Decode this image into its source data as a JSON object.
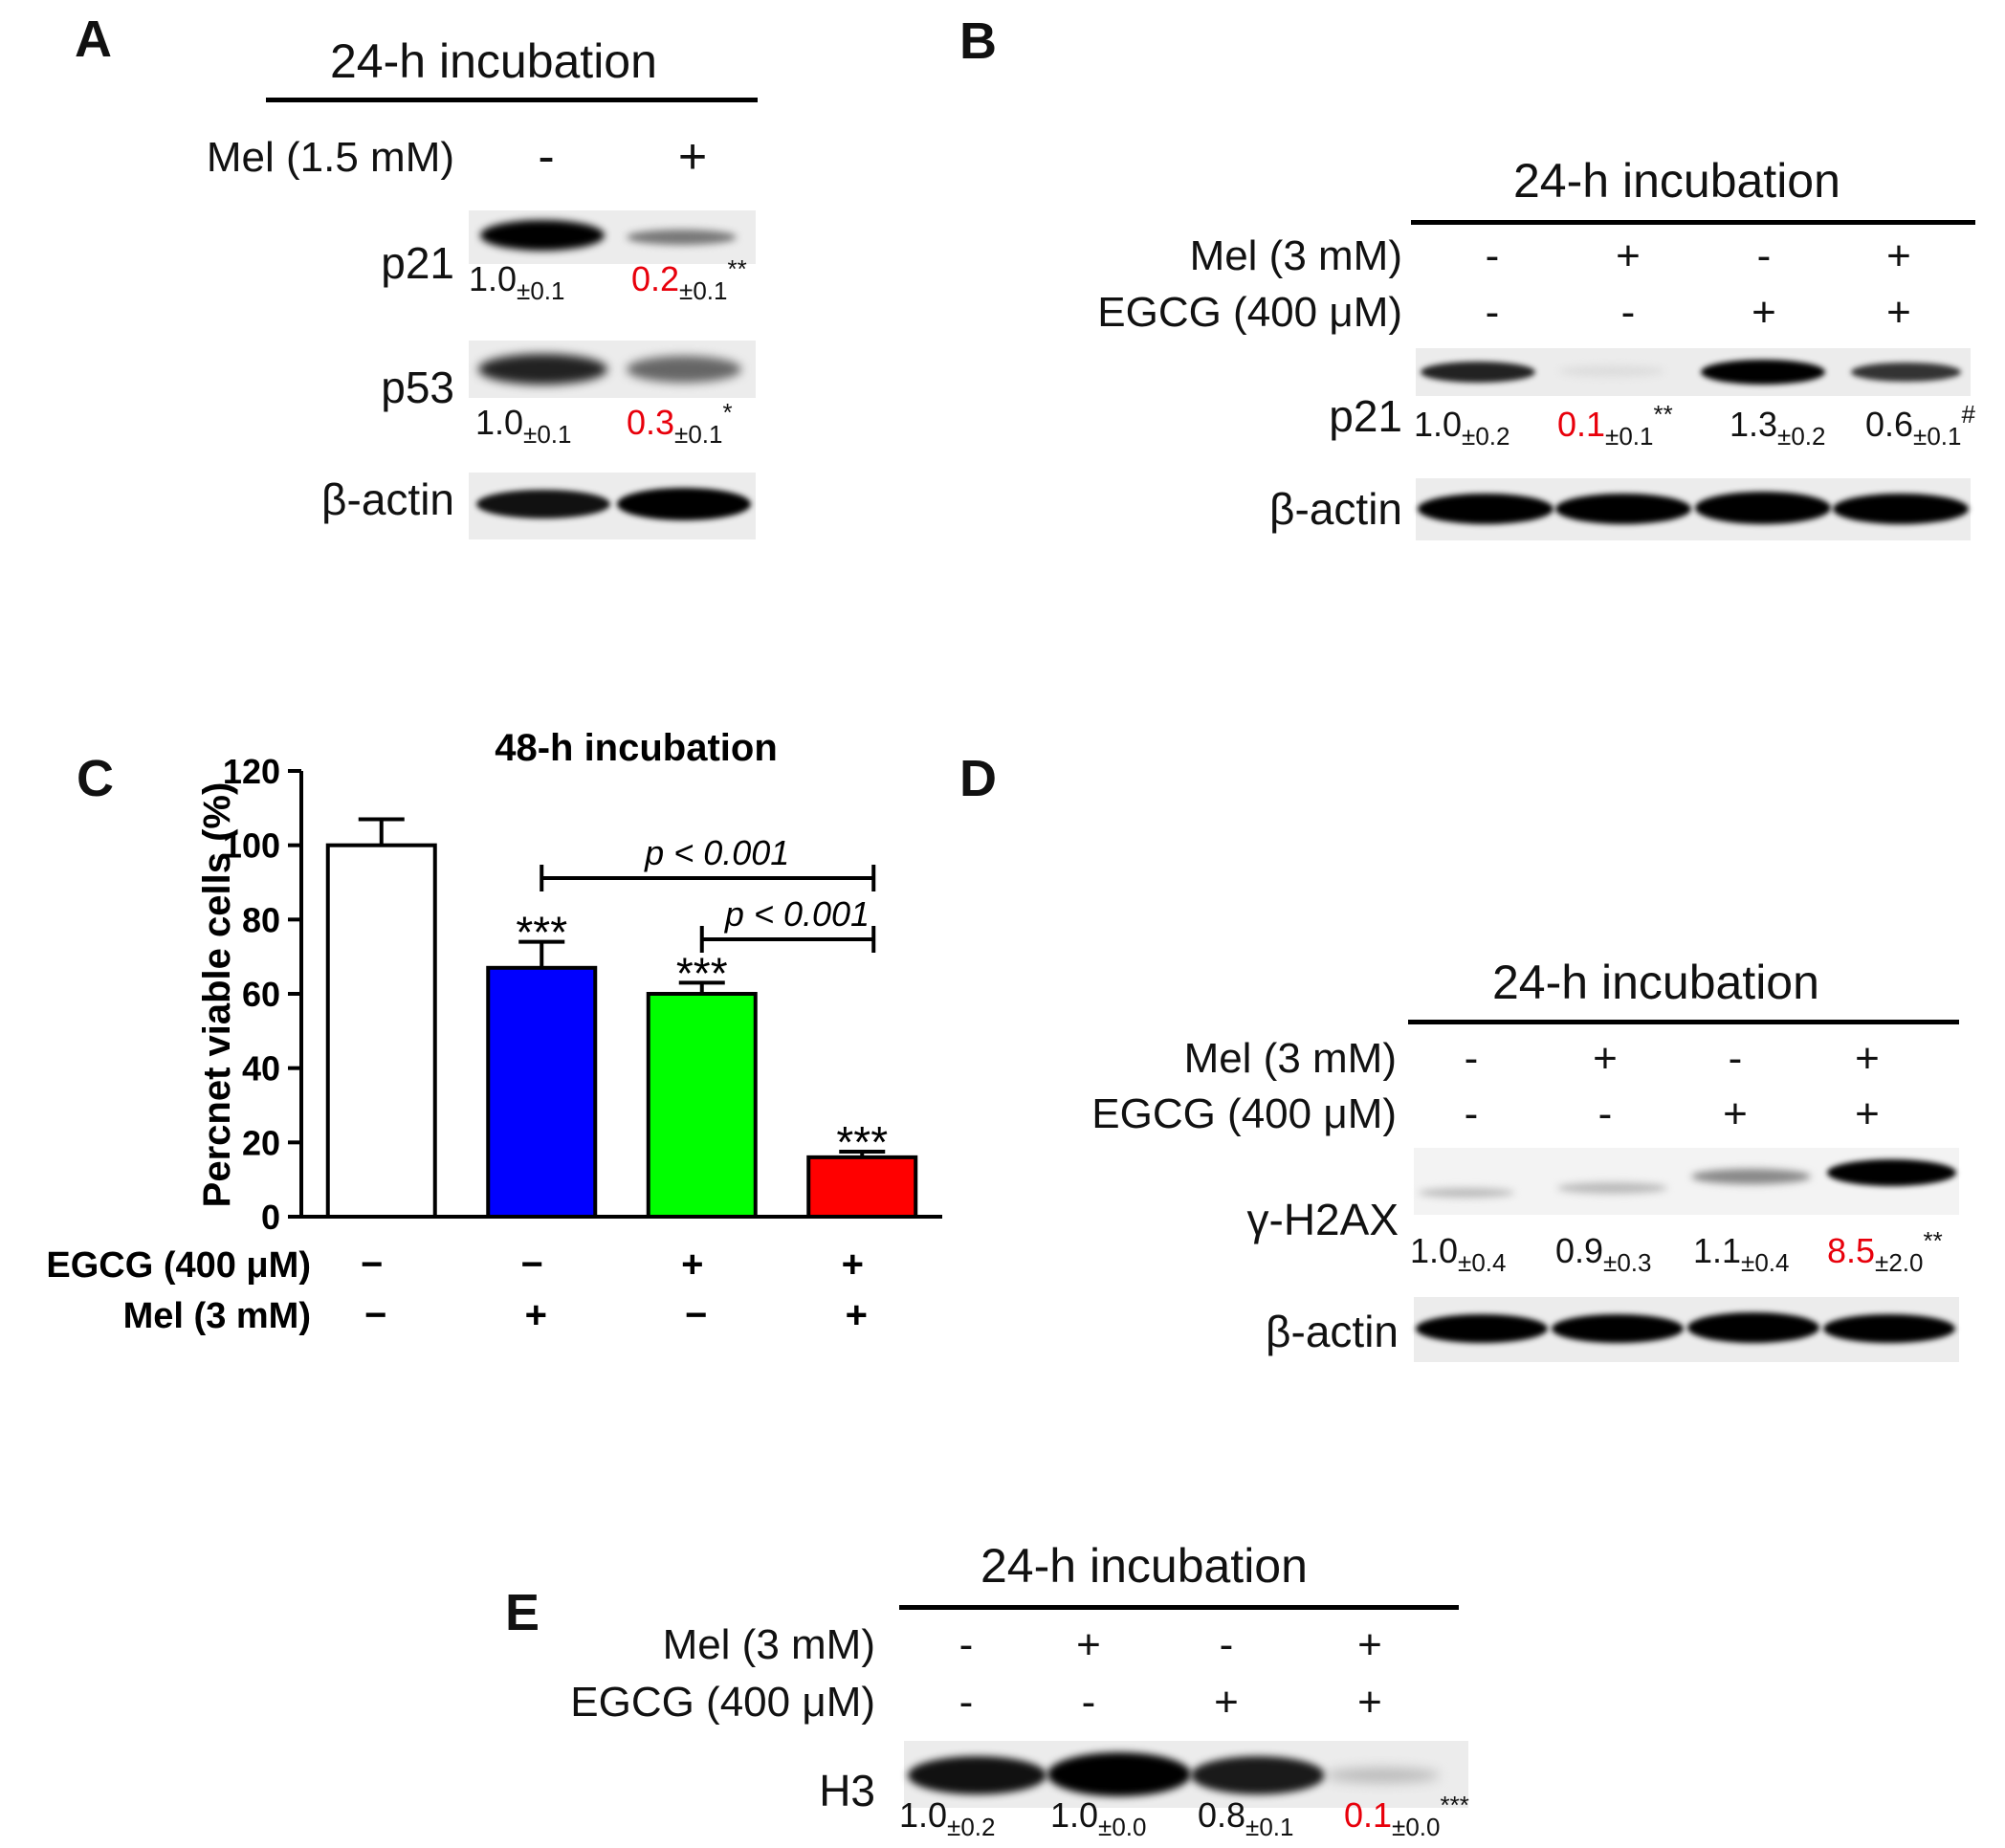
{
  "panels": {
    "A": {
      "label": "A",
      "title": "24-h incubation",
      "mel_label": "Mel (1.5 mM)",
      "mel_signs": [
        "-",
        "+"
      ],
      "p21": {
        "label": "p21",
        "values": [
          {
            "main": "1.0",
            "sd": "±0.1",
            "mark": ""
          },
          {
            "main": "0.2",
            "sd": "±0.1",
            "mark": "**"
          }
        ]
      },
      "p53": {
        "label": "p53",
        "values": [
          {
            "main": "1.0",
            "sd": "±0.1",
            "mark": ""
          },
          {
            "main": "0.3",
            "sd": "±0.1",
            "mark": "*"
          }
        ]
      },
      "actin_label": "β-actin"
    },
    "B": {
      "label": "B",
      "title": "24-h incubation",
      "mel_label": "Mel (3 mM)",
      "egcg_label": "EGCG (400 μM)",
      "mel_signs": [
        "-",
        "+",
        "-",
        "+"
      ],
      "egcg_signs": [
        "-",
        "-",
        "+",
        "+"
      ],
      "p21": {
        "label": "p21",
        "values": [
          {
            "main": "1.0",
            "sd": "±0.2",
            "mark": ""
          },
          {
            "main": "0.1",
            "sd": "±0.1",
            "mark": "**"
          },
          {
            "main": "1.3",
            "sd": "±0.2",
            "mark": ""
          },
          {
            "main": "0.6",
            "sd": "±0.1",
            "mark": "#"
          }
        ]
      },
      "actin_label": "β-actin"
    },
    "D": {
      "label": "D",
      "title": "24-h incubation",
      "mel_label": "Mel (3 mM)",
      "egcg_label": "EGCG (400 μM)",
      "mel_signs": [
        "-",
        "+",
        "-",
        "+"
      ],
      "egcg_signs": [
        "-",
        "-",
        "+",
        "+"
      ],
      "h2ax": {
        "label": "γ-H2AX",
        "values": [
          {
            "main": "1.0",
            "sd": "±0.4",
            "mark": ""
          },
          {
            "main": "0.9",
            "sd": "±0.3",
            "mark": ""
          },
          {
            "main": "1.1",
            "sd": "±0.4",
            "mark": ""
          },
          {
            "main": "8.5",
            "sd": "±2.0",
            "mark": "**"
          }
        ]
      },
      "actin_label": "β-actin"
    },
    "E": {
      "label": "E",
      "title": "24-h incubation",
      "mel_label": "Mel (3 mM)",
      "egcg_label": "EGCG (400 μM)",
      "mel_signs": [
        "-",
        "+",
        "-",
        "+"
      ],
      "egcg_signs": [
        "-",
        "-",
        "+",
        "+"
      ],
      "h3": {
        "label": "H3",
        "values": [
          {
            "main": "1.0",
            "sd": "±0.2",
            "mark": ""
          },
          {
            "main": "1.0",
            "sd": "±0.0",
            "mark": ""
          },
          {
            "main": "0.8",
            "sd": "±0.1",
            "mark": ""
          },
          {
            "main": "0.1",
            "sd": "±0.0",
            "mark": "***"
          }
        ]
      }
    },
    "C": {
      "label": "C"
    }
  },
  "colors": {
    "red": "#e8000b",
    "blue": "#0000ff",
    "green": "#00ff00",
    "bar_red": "#ff0000"
  },
  "chart_data": {
    "type": "bar",
    "title": "48-h incubation",
    "ylabel": "Percnet viable cells (%)",
    "ylim": [
      0,
      120
    ],
    "yticks": [
      "0",
      "20",
      "40",
      "60",
      "80",
      "100",
      "120"
    ],
    "values": [
      100,
      67,
      60,
      16
    ],
    "errors": [
      7,
      7,
      3,
      1.5
    ],
    "bar_colors": [
      "#ffffff",
      "#0000ff",
      "#00ff00",
      "#ff0000"
    ],
    "stars": [
      "",
      "***",
      "***",
      "***"
    ],
    "row_labels": [
      "EGCG (400 μM)",
      "Mel (3 mM)"
    ],
    "egcg": [
      "−",
      "−",
      "+",
      "+"
    ],
    "mel": [
      "−",
      "+",
      "−",
      "+"
    ],
    "comparisons": [
      {
        "from": 1,
        "to": 3,
        "label": "p < 0.001"
      },
      {
        "from": 2,
        "to": 3,
        "label": "p < 0.001"
      }
    ]
  }
}
